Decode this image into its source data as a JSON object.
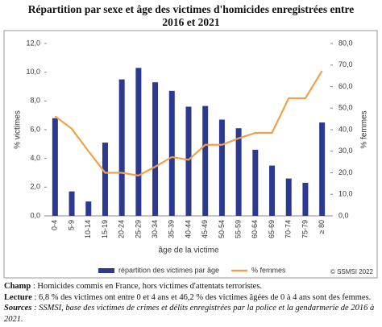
{
  "chart_data": {
    "type": "bar_line",
    "title": "Répartition par sexe et âge des victimes d'homicides enregistrées entre 2016 et 2021",
    "y_label": "% victimes",
    "y2_label": "% femmes",
    "x_label": "âge de la victime",
    "categories": [
      "0-4",
      "5-9",
      "10-14",
      "15-19",
      "20-24",
      "25-29",
      "30-34",
      "35-39",
      "40-44",
      "45-49",
      "50-54",
      "55-59",
      "60-64",
      "65-69",
      "70-74",
      "75-79",
      "≥ 80"
    ],
    "series": [
      {
        "name": "répartition des victimes par âge",
        "type": "bar",
        "color": "#2b3990",
        "values": [
          6.8,
          1.7,
          1.0,
          5.1,
          9.5,
          10.3,
          9.3,
          8.7,
          7.6,
          7.65,
          6.7,
          6.1,
          4.6,
          3.5,
          2.6,
          2.3,
          6.5
        ]
      },
      {
        "name": "% femmes",
        "type": "line",
        "axis": "y2",
        "color": "#f0a04b",
        "values": [
          46.2,
          40.4,
          30,
          20,
          20,
          18.7,
          22.8,
          27.3,
          26,
          33,
          33,
          36,
          38.5,
          38.5,
          54.6,
          54.6,
          67.3
        ]
      }
    ],
    "ylim": [
      0,
      12
    ],
    "yticks": [
      {
        "value": 0,
        "label": "0,0"
      },
      {
        "value": 2,
        "label": "2,0"
      },
      {
        "value": 4,
        "label": "4,0"
      },
      {
        "value": 6,
        "label": "6,0"
      },
      {
        "value": 8,
        "label": "8,0"
      },
      {
        "value": 10,
        "label": "10,0"
      },
      {
        "value": 12,
        "label": "12,0"
      }
    ],
    "y2lim": [
      0,
      80
    ],
    "y2ticks": [
      {
        "value": 0,
        "label": "0,0"
      },
      {
        "value": 10,
        "label": "10,0"
      },
      {
        "value": 20,
        "label": "20,0"
      },
      {
        "value": 30,
        "label": "30,0"
      },
      {
        "value": 40,
        "label": "40,0"
      },
      {
        "value": 50,
        "label": "50,0"
      },
      {
        "value": 60,
        "label": "60,0"
      },
      {
        "value": 70,
        "label": "70,0"
      },
      {
        "value": 80,
        "label": "80,0"
      }
    ],
    "grid": false,
    "legend": "bottom",
    "credit": "© SSMSI 2022"
  },
  "notes": {
    "champ": {
      "label": "Champ",
      "text": ": Homicides commis en France, hors victimes d'attentats terroristes."
    },
    "lecture": {
      "label": "Lecture",
      "text": ": 6,8 % des victimes ont entre 0 et 4 ans et 46,2 % des victimes âgées de 0 à 4 ans sont des femmes."
    },
    "sources": {
      "label": "Sources",
      "text": ": SSMSI, base des victimes de crimes et délits enregistrées par la police et la gendarmerie de 2016 à 2021."
    }
  }
}
